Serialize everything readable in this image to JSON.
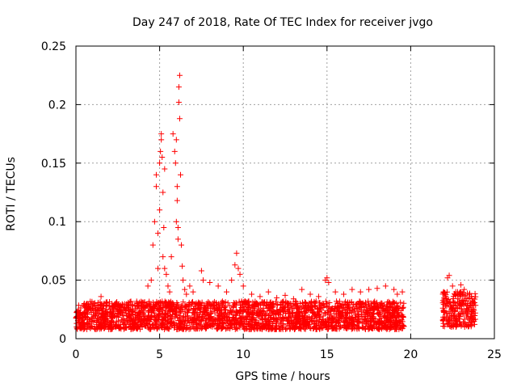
{
  "chart_data": {
    "type": "scatter",
    "title": "Day 247 of 2018, Rate Of TEC Index for receiver jvgo",
    "xlabel": "GPS time / hours",
    "ylabel": "ROTI / TECUs",
    "xlim": [
      0,
      25
    ],
    "ylim": [
      0,
      0.25
    ],
    "x_ticks": [
      0,
      5,
      10,
      15,
      20,
      25
    ],
    "y_ticks": [
      0,
      0.05,
      0.1,
      0.15,
      0.2,
      0.25
    ],
    "x_tick_labels": [
      "0",
      "5",
      "10",
      "15",
      "20",
      "25"
    ],
    "y_tick_labels": [
      "0",
      "0.05",
      "0.1",
      "0.15",
      "0.2",
      "0.25"
    ],
    "grid": true,
    "marker": "plus",
    "series": [
      {
        "name": "ROTI",
        "color": "#ff0000",
        "baseline_segments": [
          {
            "x_start": 0.0,
            "x_end": 19.6,
            "y_low": 0.008,
            "y_high": 0.032
          },
          {
            "x_start": 21.9,
            "x_end": 23.9,
            "y_low": 0.01,
            "y_high": 0.04
          }
        ],
        "x": [
          0.5,
          1.5,
          4.3,
          4.5,
          4.6,
          4.7,
          4.8,
          4.8,
          4.9,
          4.9,
          5.0,
          5.0,
          5.05,
          5.1,
          5.1,
          5.15,
          5.2,
          5.2,
          5.25,
          5.3,
          5.3,
          5.4,
          5.5,
          5.6,
          5.7,
          5.8,
          5.9,
          5.95,
          6.0,
          6.0,
          6.05,
          6.05,
          6.1,
          6.1,
          6.15,
          6.15,
          6.2,
          6.2,
          6.25,
          6.3,
          6.35,
          6.4,
          6.5,
          6.6,
          6.8,
          7.0,
          7.5,
          7.6,
          8.0,
          8.5,
          9.0,
          9.3,
          9.5,
          9.6,
          9.7,
          9.8,
          10.0,
          10.5,
          11.0,
          11.5,
          12.0,
          12.5,
          13.0,
          13.5,
          14.0,
          14.5,
          14.9,
          15.0,
          15.1,
          15.5,
          16.0,
          16.5,
          17.0,
          17.5,
          18.0,
          18.5,
          19.0,
          19.2,
          19.5,
          22.0,
          22.2,
          22.3,
          22.5,
          22.8,
          23.0,
          23.2,
          23.5
        ],
        "y": [
          0.03,
          0.036,
          0.045,
          0.05,
          0.08,
          0.1,
          0.14,
          0.13,
          0.06,
          0.09,
          0.11,
          0.15,
          0.16,
          0.17,
          0.175,
          0.155,
          0.125,
          0.07,
          0.095,
          0.145,
          0.06,
          0.055,
          0.045,
          0.04,
          0.07,
          0.175,
          0.16,
          0.15,
          0.17,
          0.1,
          0.13,
          0.118,
          0.095,
          0.085,
          0.202,
          0.215,
          0.225,
          0.188,
          0.14,
          0.08,
          0.062,
          0.05,
          0.042,
          0.038,
          0.045,
          0.04,
          0.058,
          0.05,
          0.048,
          0.045,
          0.04,
          0.05,
          0.063,
          0.073,
          0.06,
          0.055,
          0.045,
          0.038,
          0.036,
          0.04,
          0.035,
          0.037,
          0.034,
          0.042,
          0.038,
          0.036,
          0.05,
          0.052,
          0.048,
          0.04,
          0.038,
          0.042,
          0.04,
          0.042,
          0.043,
          0.045,
          0.042,
          0.038,
          0.04,
          0.035,
          0.052,
          0.054,
          0.045,
          0.04,
          0.046,
          0.042,
          0.035
        ]
      }
    ]
  }
}
